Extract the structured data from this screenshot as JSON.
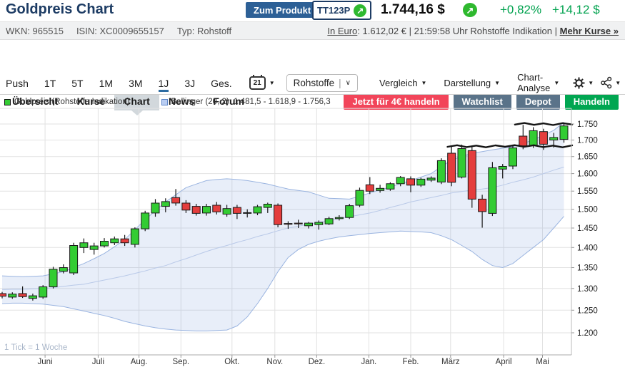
{
  "header": {
    "title": "Goldpreis Chart",
    "product_button": "Zum Produkt",
    "badge_label": "TT123P",
    "price": "1.744,16 $",
    "change_pct": "+0,82%",
    "change_abs": "+14,12 $",
    "instrument": {
      "wkn": "WKN: 965515",
      "isin": "ISIN: XC0009655157",
      "typ": "Typ: Rohstoff"
    },
    "euro": {
      "label": "In Euro",
      "rest": ": 1.612,02 € | 21:59:58 Uhr Rohstoffe Indikation | ",
      "more": "Mehr Kurse »"
    }
  },
  "icons": {
    "arrow_up_right": "↗",
    "triangle_down": "▼",
    "chevron_down": "∨",
    "divider": "|"
  },
  "nav": {
    "tabs": [
      {
        "label": "Übersicht",
        "active": false
      },
      {
        "label": "Kurse",
        "active": false
      },
      {
        "label": "Chart",
        "active": true
      },
      {
        "label": "News",
        "active": false
      },
      {
        "label": "Forum",
        "active": false
      }
    ],
    "actions": [
      {
        "label": "Jetzt für 4€ handeln",
        "color": "#f2455a"
      },
      {
        "label": "Watchlist",
        "color": "#5a7389"
      },
      {
        "label": "Depot",
        "color": "#5a7389"
      },
      {
        "label": "Handeln",
        "color": "#00a651"
      }
    ]
  },
  "toolbar": {
    "ranges": [
      "Push",
      "1T",
      "5T",
      "1M",
      "3M",
      "1J",
      "3J",
      "Ges."
    ],
    "active_range": "1J",
    "calendar_day": "21",
    "select_label": "Rohstoffe",
    "menus": [
      "Vergleich",
      "Darstellung",
      "Chart-Analyse"
    ]
  },
  "legend": [
    {
      "label": "Goldpreis (Rohstoffe Indikation)",
      "color": "#33cc33",
      "border": "#111111"
    },
    {
      "label": "Bollinger (20, 2): 1.481,5 - 1.618,9 - 1.756,3",
      "color": "#b9cdf2",
      "border": "#5f87c9"
    }
  ],
  "colors": {
    "candle_up": "#33cc33",
    "candle_down": "#e43d3d",
    "candle_stroke": "#1a1a1a",
    "band_fill": "rgba(140,170,225,0.20)",
    "band_line": "#9ab4e0",
    "band_mid": "#b9c9e8",
    "grid": "#e2e2e2",
    "axis": "#aaaaaa",
    "annotation": "#141414",
    "note": "#a9b6c9"
  },
  "chart_data": {
    "type": "candlestick",
    "x_unit": "week",
    "interval_note": "1 Tick = 1 Woche",
    "scale": "log",
    "ylim": [
      1190,
      1800
    ],
    "y_ticks": [
      {
        "label": "1.750",
        "price": 1750
      },
      {
        "label": "1.700",
        "price": 1700
      },
      {
        "label": "1.650",
        "price": 1650
      },
      {
        "label": "1.600",
        "price": 1600
      },
      {
        "label": "1.550",
        "price": 1550
      },
      {
        "label": "1.500",
        "price": 1500
      },
      {
        "label": "1.450",
        "price": 1450
      },
      {
        "label": "1.400",
        "price": 1400
      },
      {
        "label": "1.350",
        "price": 1350
      },
      {
        "label": "1.300",
        "price": 1300
      },
      {
        "label": "1.250",
        "price": 1250
      },
      {
        "label": "1.200",
        "price": 1200
      }
    ],
    "grid_extra_price": 1800,
    "x_ticks": [
      {
        "label": "Juni",
        "week": 4.2
      },
      {
        "label": "Juli",
        "week": 9.4
      },
      {
        "label": "Aug.",
        "week": 13.4
      },
      {
        "label": "Sep.",
        "week": 17.5
      },
      {
        "label": "Okt.",
        "week": 22.5
      },
      {
        "label": "Nov.",
        "week": 26.7
      },
      {
        "label": "Dez.",
        "week": 30.8
      },
      {
        "label": "Jan.",
        "week": 35.9
      },
      {
        "label": "Feb.",
        "week": 40.0
      },
      {
        "label": "März",
        "week": 43.9
      },
      {
        "label": "April",
        "week": 49.1
      },
      {
        "label": "Mai",
        "week": 52.9
      }
    ],
    "candles": [
      [
        1288,
        1292,
        1277,
        1282
      ],
      [
        1280,
        1291,
        1276,
        1287
      ],
      [
        1288,
        1305,
        1278,
        1281
      ],
      [
        1277,
        1288,
        1272,
        1283
      ],
      [
        1280,
        1308,
        1276,
        1304
      ],
      [
        1304,
        1352,
        1300,
        1346
      ],
      [
        1341,
        1358,
        1336,
        1350
      ],
      [
        1337,
        1412,
        1332,
        1405
      ],
      [
        1400,
        1423,
        1386,
        1412
      ],
      [
        1395,
        1412,
        1382,
        1404
      ],
      [
        1404,
        1424,
        1400,
        1416
      ],
      [
        1412,
        1428,
        1406,
        1422
      ],
      [
        1422,
        1432,
        1404,
        1412
      ],
      [
        1408,
        1452,
        1400,
        1448
      ],
      [
        1448,
        1496,
        1442,
        1490
      ],
      [
        1490,
        1528,
        1480,
        1517
      ],
      [
        1508,
        1530,
        1492,
        1521
      ],
      [
        1532,
        1556,
        1510,
        1517
      ],
      [
        1517,
        1525,
        1490,
        1498
      ],
      [
        1508,
        1515,
        1483,
        1489
      ],
      [
        1490,
        1515,
        1483,
        1508
      ],
      [
        1511,
        1520,
        1486,
        1493
      ],
      [
        1487,
        1512,
        1480,
        1502
      ],
      [
        1505,
        1512,
        1474,
        1489
      ],
      [
        1491,
        1500,
        1478,
        1490
      ],
      [
        1490,
        1512,
        1484,
        1507
      ],
      [
        1505,
        1518,
        1490,
        1514
      ],
      [
        1511,
        1516,
        1452,
        1459
      ],
      [
        1462,
        1468,
        1448,
        1460
      ],
      [
        1463,
        1472,
        1450,
        1461
      ],
      [
        1456,
        1466,
        1449,
        1463
      ],
      [
        1459,
        1470,
        1446,
        1465
      ],
      [
        1461,
        1480,
        1458,
        1475
      ],
      [
        1475,
        1484,
        1470,
        1478
      ],
      [
        1478,
        1515,
        1474,
        1510
      ],
      [
        1511,
        1560,
        1506,
        1552
      ],
      [
        1568,
        1590,
        1542,
        1550
      ],
      [
        1552,
        1568,
        1546,
        1558
      ],
      [
        1556,
        1575,
        1551,
        1571
      ],
      [
        1571,
        1593,
        1564,
        1589
      ],
      [
        1585,
        1592,
        1547,
        1567
      ],
      [
        1567,
        1588,
        1562,
        1584
      ],
      [
        1581,
        1592,
        1576,
        1587
      ],
      [
        1576,
        1645,
        1570,
        1638
      ],
      [
        1660,
        1680,
        1564,
        1575
      ],
      [
        1590,
        1686,
        1586,
        1674
      ],
      [
        1668,
        1680,
        1504,
        1528
      ],
      [
        1528,
        1540,
        1451,
        1494
      ],
      [
        1489,
        1634,
        1482,
        1617
      ],
      [
        1613,
        1628,
        1586,
        1621
      ],
      [
        1622,
        1686,
        1613,
        1676
      ],
      [
        1712,
        1747,
        1672,
        1682
      ],
      [
        1683,
        1740,
        1676,
        1729
      ],
      [
        1726,
        1735,
        1670,
        1687
      ],
      [
        1700,
        1722,
        1677,
        1708
      ],
      [
        1702,
        1751,
        1692,
        1744
      ]
    ],
    "bollinger": {
      "period": 20,
      "stddev": 2,
      "current": {
        "lower": 1481.5,
        "middle": 1618.9,
        "upper": 1756.3
      },
      "upper": [
        1330,
        1329,
        1328,
        1329,
        1330,
        1335,
        1340,
        1350,
        1360,
        1372,
        1385,
        1402,
        1420,
        1446,
        1472,
        1496,
        1520,
        1540,
        1560,
        1570,
        1580,
        1583,
        1585,
        1583,
        1580,
        1575,
        1570,
        1563,
        1556,
        1552,
        1548,
        1539,
        1530,
        1529,
        1528,
        1536,
        1545,
        1553,
        1562,
        1571,
        1580,
        1590,
        1600,
        1620,
        1640,
        1650,
        1660,
        1665,
        1670,
        1675,
        1680,
        1690,
        1700,
        1715,
        1730,
        1756
      ],
      "middle": [
        1297,
        1298,
        1298,
        1299,
        1300,
        1302,
        1305,
        1308,
        1310,
        1315,
        1320,
        1325,
        1330,
        1336,
        1342,
        1349,
        1355,
        1364,
        1372,
        1381,
        1390,
        1398,
        1405,
        1413,
        1420,
        1428,
        1435,
        1443,
        1450,
        1455,
        1460,
        1465,
        1470,
        1475,
        1480,
        1485,
        1490,
        1497,
        1505,
        1512,
        1520,
        1526,
        1532,
        1538,
        1545,
        1549,
        1553,
        1556,
        1560,
        1567,
        1575,
        1582,
        1590,
        1600,
        1610,
        1619
      ],
      "lower": [
        1265,
        1266,
        1266,
        1265,
        1264,
        1261,
        1258,
        1253,
        1248,
        1243,
        1238,
        1232,
        1225,
        1220,
        1215,
        1211,
        1208,
        1206,
        1205,
        1204,
        1204,
        1205,
        1206,
        1215,
        1235,
        1265,
        1300,
        1340,
        1375,
        1395,
        1408,
        1416,
        1422,
        1427,
        1430,
        1433,
        1436,
        1438,
        1440,
        1442,
        1441,
        1440,
        1438,
        1430,
        1420,
        1405,
        1390,
        1370,
        1355,
        1350,
        1360,
        1380,
        1400,
        1420,
        1450,
        1481
      ]
    },
    "annotations": [
      {
        "type": "freehand-line",
        "price": 1750,
        "from_week": 50.2,
        "to_week": 55.9
      },
      {
        "type": "freehand-line",
        "price": 1681,
        "from_week": 43.6,
        "to_week": 55.9
      }
    ]
  }
}
